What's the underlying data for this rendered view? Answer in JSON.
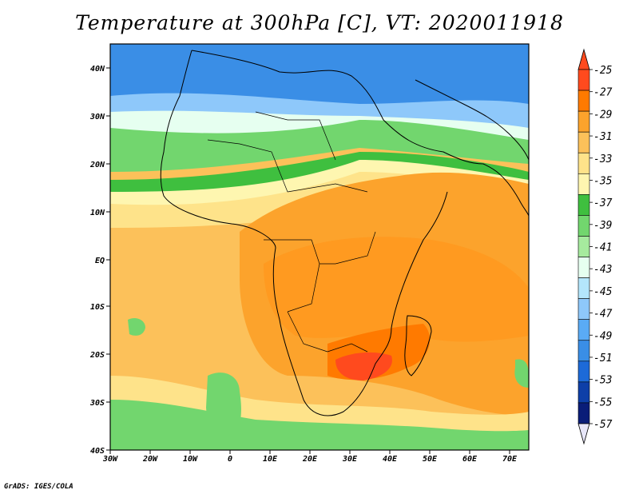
{
  "title": "Temperature at 300hPa [C], VT: 2020011918",
  "credit": "GrADS: IGES/COLA",
  "lon_labels": [
    "30W",
    "20W",
    "10W",
    "0",
    "10E",
    "20E",
    "30E",
    "40E",
    "50E",
    "60E",
    "70E"
  ],
  "lat_labels": [
    "40N",
    "30N",
    "20N",
    "10N",
    "EQ",
    "10S",
    "20S",
    "30S",
    "40S"
  ],
  "colorbar": {
    "labels": [
      "-25",
      "-27",
      "-29",
      "-31",
      "-33",
      "-35",
      "-37",
      "-39",
      "-41",
      "-43",
      "-45",
      "-47",
      "-49",
      "-51",
      "-53",
      "-55",
      "-57"
    ],
    "colors": [
      "#ff4a1e",
      "#ff7a00",
      "#fca32c",
      "#fcc15a",
      "#fee38a",
      "#fef6b0",
      "#3fbf3f",
      "#72d66e",
      "#a6ea9e",
      "#e6fff0",
      "#b4e6fc",
      "#8ec8fa",
      "#5aabf5",
      "#3a8ee6",
      "#1d6ad8",
      "#0e3fa8",
      "#0a1d78"
    ],
    "top_color": "#ff4a1e",
    "bottom_color": "#e7e6f9"
  },
  "palette": {
    "orange": "#fca32c",
    "dark_orange": "#ff7a00",
    "light_orange": "#fcc15a",
    "yellow": "#fee38a",
    "pale_yellow": "#fef6b0",
    "green": "#3fbf3f",
    "light_green": "#72d66e",
    "pale_green": "#a6ea9e",
    "cyan": "#e6fff0",
    "light_blue": "#8ec8fa",
    "blue": "#3a8ee6"
  }
}
